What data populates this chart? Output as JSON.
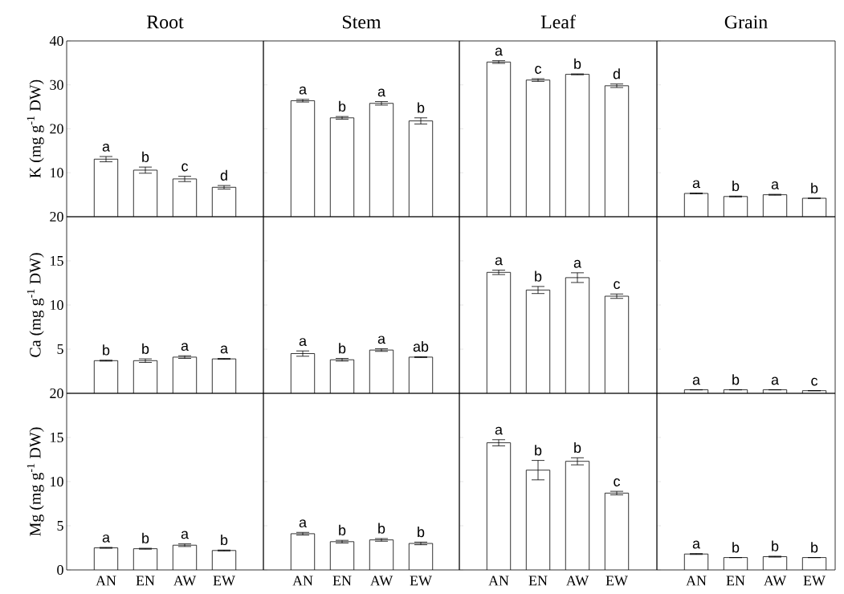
{
  "chart_data": [
    {
      "type": "bar",
      "title": "Root",
      "ylabel": "K (mg g$^{-1}$ DW)",
      "categories": [
        "AN",
        "EN",
        "AW",
        "EW"
      ],
      "values": [
        13.1,
        10.6,
        8.6,
        6.7
      ],
      "errors": [
        0.6,
        0.7,
        0.6,
        0.4
      ],
      "color": "#ffffff",
      "ylim": [
        0,
        40
      ],
      "yticks": [
        10,
        20,
        30,
        40
      ],
      "tick_labels": "y",
      "annotations": [
        {
          "text": "a",
          "x": "AN",
          "y": 13.7
        },
        {
          "text": "b",
          "x": "EN",
          "y": 11.3
        },
        {
          "text": "c",
          "x": "AW",
          "y": 9.2
        },
        {
          "text": "d",
          "x": "EW",
          "y": 7.1
        }
      ]
    },
    {
      "type": "bar",
      "title": "Stem",
      "categories": [
        "AN",
        "EN",
        "AW",
        "EW"
      ],
      "values": [
        26.4,
        22.5,
        25.8,
        21.8
      ],
      "errors": [
        0.3,
        0.3,
        0.4,
        0.7
      ],
      "color": "#ffffff",
      "ylim": [
        0,
        40
      ],
      "yticks": [
        10,
        20,
        30,
        40
      ],
      "tick_labels": false,
      "annotations": [
        {
          "text": "a",
          "x": "AN",
          "y": 26.7
        },
        {
          "text": "b",
          "x": "EN",
          "y": 22.8
        },
        {
          "text": "a",
          "x": "AW",
          "y": 26.2
        },
        {
          "text": "b",
          "x": "EW",
          "y": 22.5
        }
      ]
    },
    {
      "type": "bar",
      "title": "Leaf",
      "categories": [
        "AN",
        "EN",
        "AW",
        "EW"
      ],
      "values": [
        35.2,
        31.1,
        32.4,
        29.8
      ],
      "errors": [
        0.3,
        0.3,
        0.1,
        0.4
      ],
      "color": "#ffffff",
      "ylim": [
        0,
        40
      ],
      "yticks": [
        10,
        20,
        30,
        40
      ],
      "tick_labels": false,
      "annotations": [
        {
          "text": "a",
          "x": "AN",
          "y": 35.5
        },
        {
          "text": "c",
          "x": "EN",
          "y": 31.4
        },
        {
          "text": "b",
          "x": "AW",
          "y": 32.5
        },
        {
          "text": "d",
          "x": "EW",
          "y": 30.2
        }
      ]
    },
    {
      "type": "bar",
      "title": "Grain",
      "categories": [
        "AN",
        "EN",
        "AW",
        "EW"
      ],
      "values": [
        5.3,
        4.6,
        5.0,
        4.2
      ],
      "errors": [
        0.1,
        0.1,
        0.1,
        0
      ],
      "color": "#ffffff",
      "ylim": [
        0,
        40
      ],
      "yticks": [
        10,
        20,
        30,
        40
      ],
      "tick_labels": false,
      "annotations": [
        {
          "text": "a",
          "x": "AN",
          "y": 5.4
        },
        {
          "text": "b",
          "x": "EN",
          "y": 4.7
        },
        {
          "text": "a",
          "x": "AW",
          "y": 5.1
        },
        {
          "text": "b",
          "x": "EW",
          "y": 4.2
        }
      ]
    },
    {
      "type": "bar",
      "ylabel": "Ca (mg g$^{-1}$ DW)",
      "categories": [
        "AN",
        "EN",
        "AW",
        "EW"
      ],
      "values": [
        3.7,
        3.7,
        4.1,
        3.9
      ],
      "errors": [
        0.05,
        0.2,
        0.15,
        0.05
      ],
      "color": "#ffffff",
      "ylim": [
        0,
        20
      ],
      "yticks": [
        5,
        10,
        15,
        20
      ],
      "tick_labels": "y",
      "annotations": [
        {
          "text": "b",
          "x": "AN",
          "y": 3.75
        },
        {
          "text": "b",
          "x": "EN",
          "y": 3.9
        },
        {
          "text": "a",
          "x": "AW",
          "y": 4.25
        },
        {
          "text": "a",
          "x": "EW",
          "y": 3.95
        }
      ]
    },
    {
      "type": "bar",
      "categories": [
        "AN",
        "EN",
        "AW",
        "EW"
      ],
      "values": [
        4.5,
        3.8,
        4.9,
        4.1
      ],
      "errors": [
        0.3,
        0.15,
        0.15,
        0.05
      ],
      "color": "#ffffff",
      "ylim": [
        0,
        20
      ],
      "yticks": [
        5,
        10,
        15,
        20
      ],
      "tick_labels": false,
      "annotations": [
        {
          "text": "a",
          "x": "AN",
          "y": 4.8
        },
        {
          "text": "b",
          "x": "EN",
          "y": 3.95
        },
        {
          "text": "a",
          "x": "AW",
          "y": 5.05
        },
        {
          "text": "ab",
          "x": "EW",
          "y": 4.15
        }
      ]
    },
    {
      "type": "bar",
      "categories": [
        "AN",
        "EN",
        "AW",
        "EW"
      ],
      "values": [
        13.7,
        11.7,
        13.1,
        11.0
      ],
      "errors": [
        0.25,
        0.4,
        0.55,
        0.25
      ],
      "color": "#ffffff",
      "ylim": [
        0,
        20
      ],
      "yticks": [
        5,
        10,
        15,
        20
      ],
      "tick_labels": false,
      "annotations": [
        {
          "text": "a",
          "x": "AN",
          "y": 13.95
        },
        {
          "text": "b",
          "x": "EN",
          "y": 12.1
        },
        {
          "text": "a",
          "x": "AW",
          "y": 13.65
        },
        {
          "text": "c",
          "x": "EW",
          "y": 11.25
        }
      ]
    },
    {
      "type": "bar",
      "categories": [
        "AN",
        "EN",
        "AW",
        "EW"
      ],
      "values": [
        0.4,
        0.4,
        0.4,
        0.3
      ],
      "errors": [
        0,
        0,
        0,
        0
      ],
      "color": "#ffffff",
      "ylim": [
        0,
        20
      ],
      "yticks": [
        5,
        10,
        15,
        20
      ],
      "tick_labels": false,
      "annotations": [
        {
          "text": "a",
          "x": "AN",
          "y": 0.4
        },
        {
          "text": "b",
          "x": "EN",
          "y": 0.4
        },
        {
          "text": "a",
          "x": "AW",
          "y": 0.4
        },
        {
          "text": "c",
          "x": "EW",
          "y": 0.3
        }
      ]
    },
    {
      "type": "bar",
      "ylabel": "Mg (mg g$^{-1}$ DW)",
      "categories": [
        "AN",
        "EN",
        "AW",
        "EW"
      ],
      "values": [
        2.5,
        2.4,
        2.8,
        2.2
      ],
      "errors": [
        0.05,
        0.05,
        0.15,
        0.05
      ],
      "color": "#ffffff",
      "ylim": [
        0,
        20
      ],
      "yticks": [
        0,
        5,
        10,
        15,
        20
      ],
      "annotations": [
        {
          "text": "a",
          "x": "AN",
          "y": 2.55
        },
        {
          "text": "b",
          "x": "EN",
          "y": 2.45
        },
        {
          "text": "a",
          "x": "AW",
          "y": 2.95
        },
        {
          "text": "b",
          "x": "EW",
          "y": 2.25
        }
      ]
    },
    {
      "type": "bar",
      "categories": [
        "AN",
        "EN",
        "AW",
        "EW"
      ],
      "values": [
        4.1,
        3.2,
        3.4,
        3.0
      ],
      "errors": [
        0.15,
        0.15,
        0.15,
        0.15
      ],
      "color": "#ffffff",
      "ylim": [
        0,
        20
      ],
      "yticks": [
        0,
        5,
        10,
        15,
        20
      ],
      "tick_labels": "x",
      "annotations": [
        {
          "text": "a",
          "x": "AN",
          "y": 4.25
        },
        {
          "text": "b",
          "x": "EN",
          "y": 3.35
        },
        {
          "text": "b",
          "x": "AW",
          "y": 3.55
        },
        {
          "text": "b",
          "x": "EW",
          "y": 3.15
        }
      ]
    },
    {
      "type": "bar",
      "categories": [
        "AN",
        "EN",
        "AW",
        "EW"
      ],
      "values": [
        14.4,
        11.3,
        12.3,
        8.7
      ],
      "errors": [
        0.35,
        1.1,
        0.4,
        0.2
      ],
      "color": "#ffffff",
      "ylim": [
        0,
        20
      ],
      "yticks": [
        0,
        5,
        10,
        15,
        20
      ],
      "tick_labels": "x",
      "annotations": [
        {
          "text": "a",
          "x": "AN",
          "y": 14.75
        },
        {
          "text": "b",
          "x": "EN",
          "y": 12.4
        },
        {
          "text": "b",
          "x": "AW",
          "y": 12.7
        },
        {
          "text": "c",
          "x": "EW",
          "y": 8.9
        }
      ]
    },
    {
      "type": "bar",
      "categories": [
        "AN",
        "EN",
        "AW",
        "EW"
      ],
      "values": [
        1.8,
        1.4,
        1.5,
        1.4
      ],
      "errors": [
        0.05,
        0,
        0.05,
        0
      ],
      "color": "#ffffff",
      "ylim": [
        0,
        20
      ],
      "yticks": [
        0,
        5,
        10,
        15,
        20
      ],
      "tick_labels": "x",
      "annotations": [
        {
          "text": "a",
          "x": "AN",
          "y": 1.85
        },
        {
          "text": "b",
          "x": "EN",
          "y": 1.4
        },
        {
          "text": "b",
          "x": "AW",
          "y": 1.55
        },
        {
          "text": "b",
          "x": "EW",
          "y": 1.4
        }
      ]
    }
  ]
}
